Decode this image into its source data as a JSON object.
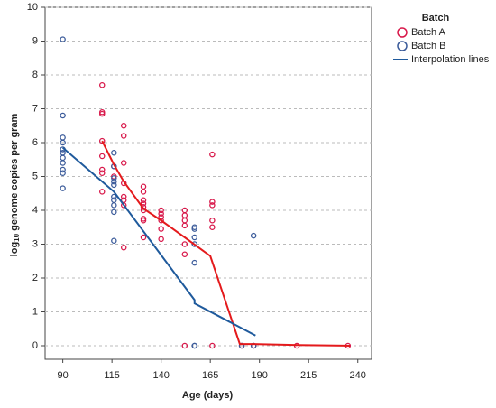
{
  "chart_data": {
    "type": "scatter",
    "x_label": "Age (days)",
    "y_label": [
      "log",
      "10",
      " genome copies per gram"
    ],
    "xlim": [
      81,
      247
    ],
    "ylim": [
      -0.4,
      10
    ],
    "xticks": [
      90,
      115,
      140,
      165,
      190,
      215,
      240
    ],
    "yticks": [
      0,
      1,
      2,
      3,
      4,
      5,
      6,
      7,
      8,
      9,
      10
    ],
    "grid": true,
    "legend_title": "Batch",
    "legend_position": "right",
    "series": [
      {
        "name": "Batch A",
        "color": "#d8184a",
        "x": [
          110,
          110,
          110,
          110,
          110,
          110,
          110,
          110,
          116,
          116,
          121,
          121,
          121,
          121,
          121,
          121,
          121,
          121,
          131,
          131,
          131,
          131,
          131,
          131,
          131,
          131,
          131,
          140,
          140,
          140,
          140,
          140,
          140,
          152,
          152,
          152,
          152,
          152,
          152,
          152,
          166,
          166,
          166,
          166,
          166,
          166,
          181,
          187,
          209,
          235
        ],
        "values": [
          7.7,
          6.9,
          6.85,
          6.05,
          5.6,
          5.2,
          5.1,
          4.55,
          5.3,
          5.0,
          6.5,
          6.2,
          5.4,
          4.8,
          4.4,
          4.3,
          4.15,
          2.9,
          4.7,
          4.55,
          4.3,
          4.2,
          4.1,
          4.0,
          3.75,
          3.7,
          3.2,
          4.0,
          3.9,
          3.8,
          3.7,
          3.45,
          3.15,
          4.0,
          3.85,
          3.7,
          3.55,
          3.0,
          2.7,
          0,
          5.65,
          4.25,
          4.15,
          3.7,
          3.5,
          0,
          0,
          0,
          0,
          0
        ]
      },
      {
        "name": "Batch B",
        "color": "#3b5b9a",
        "x": [
          90,
          90,
          90,
          90,
          90,
          90,
          90,
          90,
          90,
          90,
          90,
          116,
          116,
          116,
          116,
          116,
          116,
          116,
          116,
          116,
          116,
          157,
          157,
          157,
          157,
          157,
          157,
          157,
          181,
          187,
          187
        ],
        "values": [
          9.05,
          6.8,
          6.15,
          6.0,
          5.8,
          5.7,
          5.55,
          5.4,
          5.2,
          5.1,
          4.65,
          5.7,
          5.3,
          4.95,
          4.85,
          4.75,
          4.4,
          4.3,
          4.15,
          3.95,
          3.1,
          3.5,
          3.45,
          3.2,
          3.0,
          2.45,
          0,
          0,
          0,
          3.25,
          0
        ]
      }
    ],
    "line_legend": "Interpolation lines",
    "lines": [
      {
        "color": "#e41a1c",
        "x": [
          110,
          116,
          121,
          131,
          140,
          152,
          165,
          180,
          187,
          210,
          236
        ],
        "values": [
          6.05,
          5.35,
          4.85,
          4.05,
          3.7,
          3.2,
          2.65,
          0.05,
          0.05,
          0.02,
          0.0
        ]
      },
      {
        "color": "#1f5a9c",
        "x": [
          90,
          116,
          157,
          157,
          188
        ],
        "values": [
          5.85,
          4.55,
          1.35,
          1.25,
          0.3
        ]
      }
    ]
  }
}
